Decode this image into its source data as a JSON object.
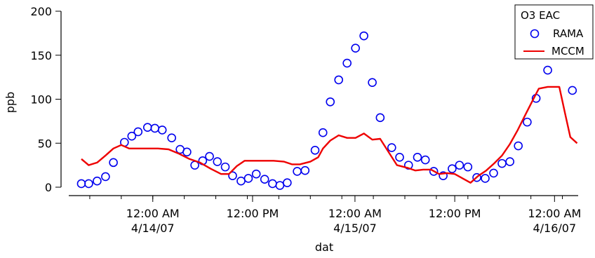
{
  "chart_data": {
    "type": "line",
    "xlabel": "dat",
    "ylabel": "ppb",
    "ylim": [
      0,
      200
    ],
    "yticks": [
      0,
      50,
      100,
      150,
      200
    ],
    "x_unit": "hours",
    "xlim": [
      -16,
      81
    ],
    "xticks": [
      {
        "x": 0,
        "line1": "12:00 AM",
        "line2": "4/14/07"
      },
      {
        "x": 19,
        "line1": "12:00 PM",
        "line2": ""
      },
      {
        "x": 38.5,
        "line1": "12:00 AM",
        "line2": "4/15/07"
      },
      {
        "x": 57.5,
        "line1": "12:00 PM",
        "line2": ""
      },
      {
        "x": 76.5,
        "line1": "12:00 AM",
        "line2": "4/16/07"
      }
    ],
    "legend": {
      "title": "O3 EAC",
      "position": "top-right"
    },
    "series": [
      {
        "name": "RAMA",
        "style": "circle",
        "color": "#0000ee",
        "points": [
          [
            -13.6,
            4
          ],
          [
            -12.2,
            4
          ],
          [
            -10.6,
            7
          ],
          [
            -9.0,
            12
          ],
          [
            -7.5,
            28
          ],
          [
            -5.4,
            51
          ],
          [
            -4.0,
            58
          ],
          [
            -2.8,
            63
          ],
          [
            -1.0,
            68
          ],
          [
            0.4,
            67
          ],
          [
            1.8,
            65
          ],
          [
            3.6,
            56
          ],
          [
            5.2,
            43
          ],
          [
            6.5,
            40
          ],
          [
            8.0,
            25
          ],
          [
            9.5,
            30
          ],
          [
            10.8,
            35
          ],
          [
            12.3,
            29
          ],
          [
            13.8,
            23
          ],
          [
            15.2,
            13
          ],
          [
            16.8,
            7
          ],
          [
            18.2,
            10
          ],
          [
            19.7,
            15
          ],
          [
            21.3,
            9
          ],
          [
            22.8,
            4
          ],
          [
            24.2,
            2
          ],
          [
            25.6,
            5
          ],
          [
            27.5,
            18
          ],
          [
            29.0,
            19
          ],
          [
            30.9,
            42
          ],
          [
            32.4,
            62
          ],
          [
            33.8,
            97
          ],
          [
            35.4,
            122
          ],
          [
            37.0,
            141
          ],
          [
            38.6,
            158
          ],
          [
            40.2,
            172
          ],
          [
            41.8,
            119
          ],
          [
            43.3,
            79
          ],
          [
            45.5,
            45
          ],
          [
            47.0,
            34
          ],
          [
            48.7,
            25
          ],
          [
            50.4,
            34
          ],
          [
            51.9,
            31
          ],
          [
            53.5,
            18
          ],
          [
            55.3,
            13
          ],
          [
            57.0,
            21
          ],
          [
            58.4,
            25
          ],
          [
            60.0,
            23
          ],
          [
            61.7,
            11
          ],
          [
            63.3,
            10
          ],
          [
            64.9,
            16
          ],
          [
            66.5,
            27
          ],
          [
            68.0,
            29
          ],
          [
            69.6,
            47
          ],
          [
            71.3,
            74
          ],
          [
            73.0,
            101
          ],
          [
            75.2,
            133
          ],
          [
            79.9,
            110
          ]
        ]
      },
      {
        "name": "MCCM",
        "style": "line",
        "color": "#ee0000",
        "points": [
          [
            -13.6,
            32
          ],
          [
            -12.2,
            25
          ],
          [
            -10.6,
            28
          ],
          [
            -9.0,
            36
          ],
          [
            -7.5,
            44
          ],
          [
            -6.0,
            48
          ],
          [
            -4.5,
            44
          ],
          [
            -3.0,
            44
          ],
          [
            -1.0,
            44
          ],
          [
            1.0,
            44
          ],
          [
            3.0,
            43
          ],
          [
            5.0,
            38
          ],
          [
            7.0,
            32
          ],
          [
            9.0,
            28
          ],
          [
            11.0,
            21
          ],
          [
            13.0,
            15
          ],
          [
            14.5,
            15
          ],
          [
            16.0,
            24
          ],
          [
            17.5,
            30
          ],
          [
            19.0,
            30
          ],
          [
            21.0,
            30
          ],
          [
            23.0,
            30
          ],
          [
            25.0,
            29
          ],
          [
            26.5,
            26
          ],
          [
            28.0,
            26
          ],
          [
            30.0,
            29
          ],
          [
            31.5,
            34
          ],
          [
            32.4,
            44
          ],
          [
            33.8,
            53
          ],
          [
            35.4,
            59
          ],
          [
            37.0,
            56
          ],
          [
            38.6,
            56
          ],
          [
            40.2,
            61
          ],
          [
            41.8,
            54
          ],
          [
            43.3,
            55
          ],
          [
            45.0,
            39
          ],
          [
            46.5,
            25
          ],
          [
            48.5,
            22
          ],
          [
            50.0,
            19
          ],
          [
            51.5,
            20
          ],
          [
            53.0,
            20
          ],
          [
            54.5,
            15
          ],
          [
            56.0,
            16
          ],
          [
            57.5,
            15
          ],
          [
            59.0,
            10
          ],
          [
            60.5,
            5
          ],
          [
            62.0,
            13
          ],
          [
            63.5,
            19
          ],
          [
            65.0,
            27
          ],
          [
            66.5,
            36
          ],
          [
            68.0,
            49
          ],
          [
            69.5,
            65
          ],
          [
            71.0,
            83
          ],
          [
            72.2,
            97
          ],
          [
            73.5,
            112
          ],
          [
            75.2,
            114
          ],
          [
            76.5,
            114
          ],
          [
            77.4,
            114
          ],
          [
            78.5,
            84
          ],
          [
            79.5,
            57
          ],
          [
            80.8,
            50
          ]
        ]
      }
    ]
  }
}
